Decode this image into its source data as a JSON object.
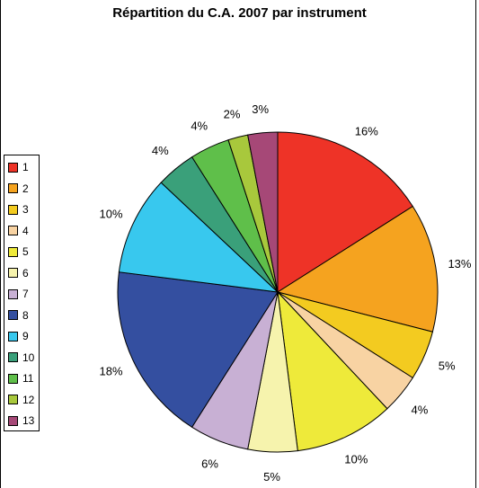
{
  "chart_data": {
    "type": "pie",
    "title": "Répartition du C.A. 2007 par instrument",
    "legend_position": "left",
    "slices": [
      {
        "name": "1",
        "value": 16,
        "label": "16%",
        "color": "#ee3327"
      },
      {
        "name": "2",
        "value": 13,
        "label": "13%",
        "color": "#f5a31f"
      },
      {
        "name": "3",
        "value": 5,
        "label": "5%",
        "color": "#f3cb20"
      },
      {
        "name": "4",
        "value": 4,
        "label": "4%",
        "color": "#f8d3a3"
      },
      {
        "name": "5",
        "value": 10,
        "label": "10%",
        "color": "#eeea3a"
      },
      {
        "name": "6",
        "value": 5,
        "label": "5%",
        "color": "#f6f3ad"
      },
      {
        "name": "7",
        "value": 6,
        "label": "6%",
        "color": "#c8b0d4"
      },
      {
        "name": "8",
        "value": 18,
        "label": "18%",
        "color": "#344fa0"
      },
      {
        "name": "9",
        "value": 10,
        "label": "10%",
        "color": "#38c8ee"
      },
      {
        "name": "10",
        "value": 4,
        "label": "4%",
        "color": "#3aa07a"
      },
      {
        "name": "11",
        "value": 4,
        "label": "4%",
        "color": "#5fbf4a"
      },
      {
        "name": "12",
        "value": 2,
        "label": "2%",
        "color": "#a8c83c"
      },
      {
        "name": "13",
        "value": 3,
        "label": "3%",
        "color": "#a64877"
      }
    ]
  }
}
